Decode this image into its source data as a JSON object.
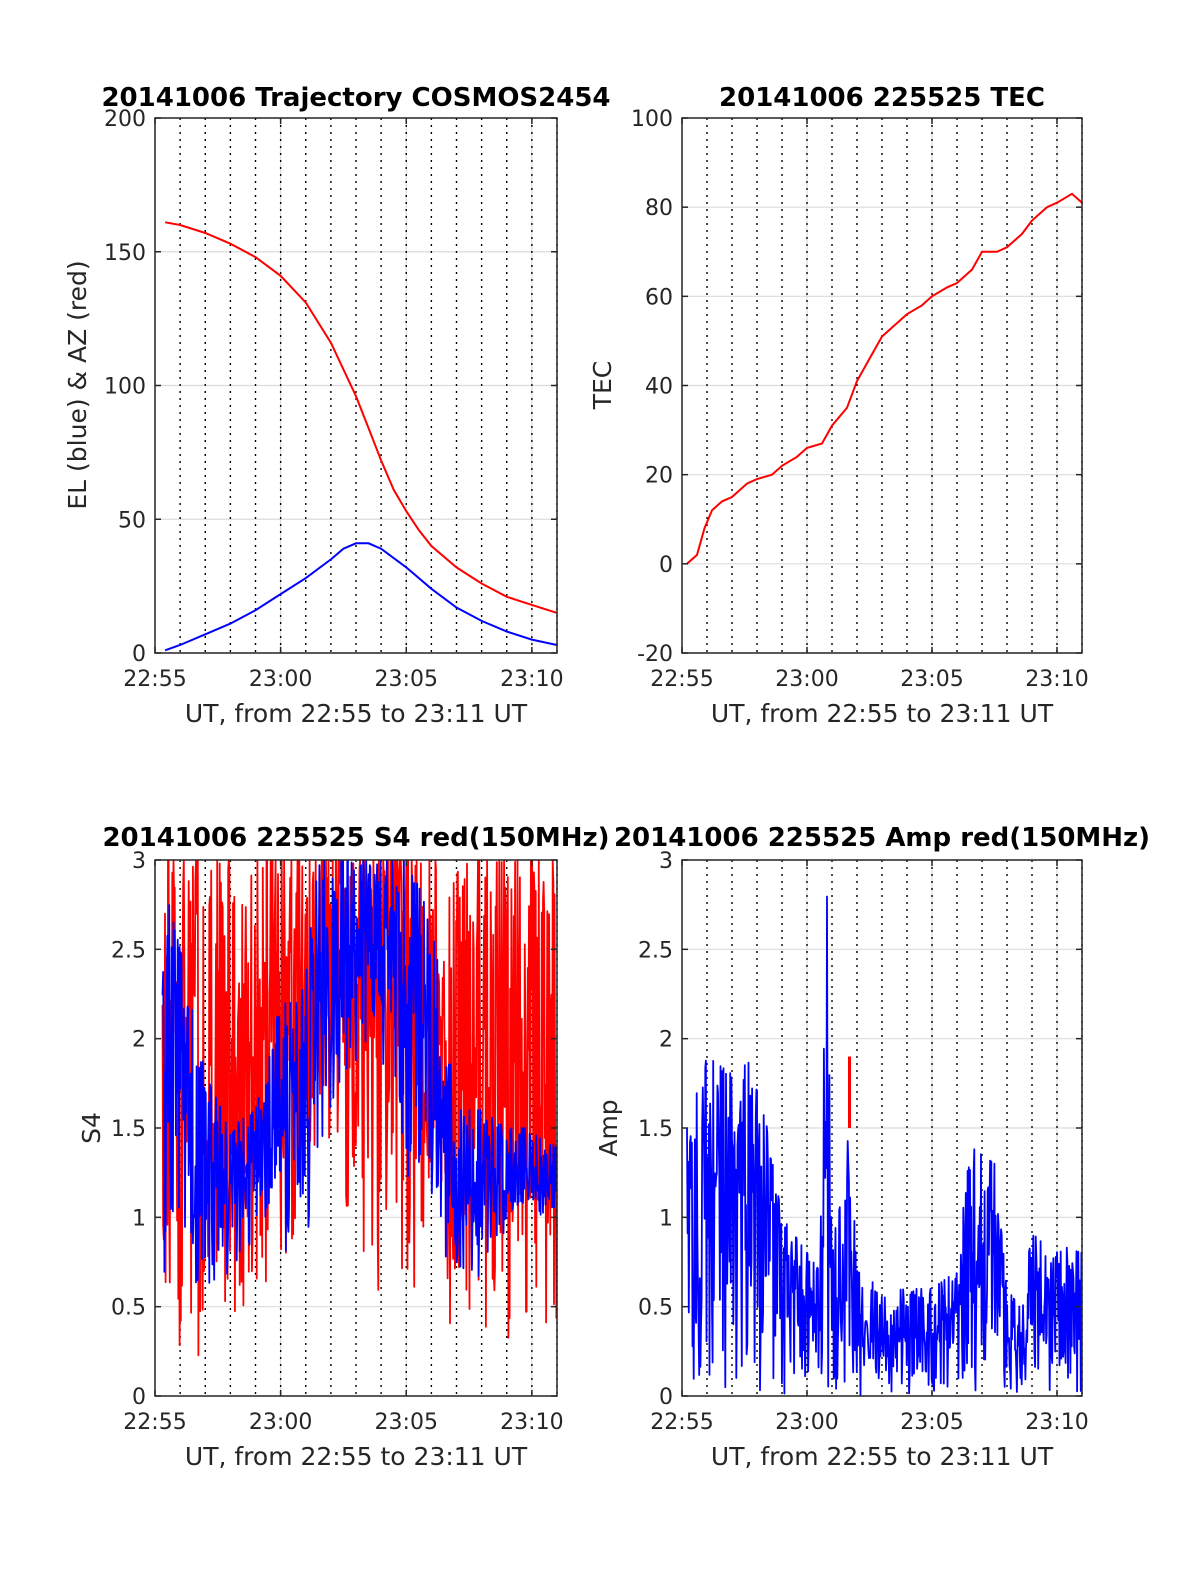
{
  "chart_data": [
    {
      "id": "trajectory",
      "type": "line",
      "title": "20141006 Trajectory COSMOS2454",
      "xlabel": "UT, from 22:55 to 23:11 UT",
      "ylabel": "EL (blue) & AZ (red)",
      "xlim": [
        0,
        16
      ],
      "ylim": [
        0,
        200
      ],
      "x_ticks": [
        {
          "value": 0,
          "label": "22:55"
        },
        {
          "value": 5,
          "label": "23:00"
        },
        {
          "value": 10,
          "label": "23:05"
        },
        {
          "value": 15,
          "label": "23:10"
        }
      ],
      "y_ticks": [
        {
          "value": 0,
          "label": "0"
        },
        {
          "value": 50,
          "label": "50"
        },
        {
          "value": 100,
          "label": "100"
        },
        {
          "value": 150,
          "label": "150"
        },
        {
          "value": 200,
          "label": "200"
        }
      ],
      "grid": true,
      "dotted_verticals": [
        1,
        2,
        3,
        4,
        5,
        6,
        7,
        8,
        9,
        10,
        11,
        12,
        13,
        14,
        15,
        16
      ],
      "series": [
        {
          "color": "#ff0000",
          "x": [
            0.4,
            1,
            2,
            3,
            4,
            5,
            6,
            7,
            8,
            8.5,
            9,
            9.5,
            10,
            10.5,
            11,
            12,
            13,
            14,
            15,
            16
          ],
          "y": [
            161,
            160,
            157,
            153,
            148,
            141,
            131,
            116,
            96,
            84,
            72,
            61,
            53,
            46,
            40,
            32,
            26,
            21,
            18,
            15
          ]
        },
        {
          "color": "#0000ff",
          "x": [
            0.4,
            1,
            2,
            3,
            4,
            5,
            6,
            7,
            7.5,
            8,
            8.5,
            9,
            10,
            11,
            12,
            13,
            14,
            15,
            16
          ],
          "y": [
            1,
            3,
            7,
            11,
            16,
            22,
            28,
            35,
            39,
            41,
            41,
            39,
            32,
            24,
            17,
            12,
            8,
            5,
            3
          ]
        }
      ]
    },
    {
      "id": "tec",
      "type": "line",
      "title": "20141006 225525 TEC",
      "xlabel": "UT, from 22:55 to 23:11 UT",
      "ylabel": "TEC",
      "xlim": [
        0,
        16
      ],
      "ylim": [
        -20,
        100
      ],
      "x_ticks": [
        {
          "value": 0,
          "label": "22:55"
        },
        {
          "value": 5,
          "label": "23:00"
        },
        {
          "value": 10,
          "label": "23:05"
        },
        {
          "value": 15,
          "label": "23:10"
        }
      ],
      "y_ticks": [
        {
          "value": -20,
          "label": "-20"
        },
        {
          "value": 0,
          "label": "0"
        },
        {
          "value": 20,
          "label": "20"
        },
        {
          "value": 40,
          "label": "40"
        },
        {
          "value": 60,
          "label": "60"
        },
        {
          "value": 80,
          "label": "80"
        },
        {
          "value": 100,
          "label": "100"
        }
      ],
      "grid": true,
      "dotted_verticals": [
        1,
        2,
        3,
        4,
        5,
        6,
        7,
        8,
        9,
        10,
        11,
        12,
        13,
        14,
        15,
        16
      ],
      "series": [
        {
          "color": "#ff0000",
          "x": [
            0.2,
            0.6,
            0.9,
            1.2,
            1.6,
            2,
            2.6,
            3,
            3.6,
            4,
            4.6,
            5,
            5.6,
            6,
            6.6,
            7,
            7.6,
            8,
            8.6,
            9,
            9.6,
            10,
            10.6,
            11,
            11.6,
            12,
            12.6,
            13,
            13.6,
            14,
            14.6,
            15,
            15.6,
            16
          ],
          "y": [
            0,
            2,
            8,
            12,
            14,
            15,
            18,
            19,
            20,
            22,
            24,
            26,
            27,
            31,
            35,
            41,
            47,
            51,
            54,
            56,
            58,
            60,
            62,
            63,
            66,
            70,
            70,
            71,
            74,
            77,
            80,
            81,
            83,
            81
          ]
        }
      ]
    },
    {
      "id": "s4",
      "type": "line",
      "title": "20141006 225525 S4 red(150MHz)",
      "xlabel": "UT, from 22:55 to 23:11 UT",
      "ylabel": "S4",
      "xlim": [
        0,
        16
      ],
      "ylim": [
        0,
        3
      ],
      "x_ticks": [
        {
          "value": 0,
          "label": "22:55"
        },
        {
          "value": 5,
          "label": "23:00"
        },
        {
          "value": 10,
          "label": "23:05"
        },
        {
          "value": 15,
          "label": "23:10"
        }
      ],
      "y_ticks": [
        {
          "value": 0,
          "label": "0"
        },
        {
          "value": 0.5,
          "label": "0.5"
        },
        {
          "value": 1,
          "label": "1"
        },
        {
          "value": 1.5,
          "label": "1.5"
        },
        {
          "value": 2,
          "label": "2"
        },
        {
          "value": 2.5,
          "label": "2.5"
        },
        {
          "value": 3,
          "label": "3"
        }
      ],
      "grid": true,
      "dotted_verticals": [
        1,
        2,
        3,
        4,
        5,
        6,
        7,
        8,
        9,
        10,
        11,
        12,
        13,
        14,
        15,
        16
      ],
      "noisy_series": [
        {
          "color": "#ff0000",
          "x_range": [
            0.3,
            16
          ],
          "clip": [
            0,
            3
          ],
          "envelope": [
            [
              0.3,
              0.2,
              3
            ],
            [
              2,
              0.2,
              3
            ],
            [
              4,
              0.4,
              3
            ],
            [
              5.5,
              0.8,
              3
            ],
            [
              6.5,
              1.5,
              3
            ],
            [
              7.5,
              1.0,
              3
            ],
            [
              8.5,
              0.6,
              3
            ],
            [
              9.5,
              0.5,
              3
            ],
            [
              10.5,
              0.6,
              3
            ],
            [
              12,
              0.2,
              3
            ],
            [
              14,
              0.2,
              3
            ],
            [
              16,
              0.4,
              3
            ]
          ]
        },
        {
          "color": "#0000ff",
          "x_range": [
            0.3,
            16
          ],
          "clip": [
            0,
            3
          ],
          "envelope": [
            [
              0.3,
              0.6,
              2.9
            ],
            [
              1,
              0.6,
              2.5
            ],
            [
              2,
              0.5,
              1.8
            ],
            [
              3,
              0.6,
              1.5
            ],
            [
              4,
              0.8,
              1.6
            ],
            [
              5,
              0.9,
              2.2
            ],
            [
              5.8,
              0.4,
              2.2
            ],
            [
              6.5,
              1.3,
              3
            ],
            [
              7.5,
              1.7,
              3
            ],
            [
              8.5,
              1.9,
              3
            ],
            [
              9.5,
              1.8,
              3
            ],
            [
              10,
              1.2,
              3
            ],
            [
              11,
              1.0,
              2.7
            ],
            [
              12,
              0.6,
              1.6
            ],
            [
              13,
              0.6,
              1.6
            ],
            [
              14,
              0.9,
              1.5
            ],
            [
              15,
              1.0,
              1.5
            ],
            [
              16,
              1.0,
              1.4
            ]
          ]
        }
      ]
    },
    {
      "id": "amp",
      "type": "line",
      "title": "20141006 225525 Amp red(150MHz)",
      "xlabel": "UT, from 22:55 to 23:11 UT",
      "ylabel": "Amp",
      "xlim": [
        0,
        16
      ],
      "ylim": [
        0,
        3
      ],
      "x_ticks": [
        {
          "value": 0,
          "label": "22:55"
        },
        {
          "value": 5,
          "label": "23:00"
        },
        {
          "value": 10,
          "label": "23:05"
        },
        {
          "value": 15,
          "label": "23:10"
        }
      ],
      "y_ticks": [
        {
          "value": 0,
          "label": "0"
        },
        {
          "value": 0.5,
          "label": "0.5"
        },
        {
          "value": 1,
          "label": "1"
        },
        {
          "value": 1.5,
          "label": "1.5"
        },
        {
          "value": 2,
          "label": "2"
        },
        {
          "value": 2.5,
          "label": "2.5"
        },
        {
          "value": 3,
          "label": "3"
        }
      ],
      "grid": true,
      "dotted_verticals": [
        1,
        2,
        3,
        4,
        5,
        6,
        7,
        8,
        9,
        10,
        11,
        12,
        13,
        14,
        15,
        16
      ],
      "red_spike": {
        "x": 6.7,
        "y_from": 1.5,
        "y_to": 1.9,
        "color": "#ff0000"
      },
      "noisy_series": [
        {
          "color": "#0000ff",
          "x_range": [
            0.2,
            16
          ],
          "clip": [
            0,
            3
          ],
          "envelope": [
            [
              0.2,
              0,
              1.5
            ],
            [
              1,
              0,
              1.9
            ],
            [
              2,
              0,
              1.8
            ],
            [
              3,
              0,
              1.9
            ],
            [
              3.5,
              0,
              1.4
            ],
            [
              4,
              0,
              1.0
            ],
            [
              5,
              0,
              0.8
            ],
            [
              5.5,
              0,
              0.7
            ],
            [
              5.8,
              0,
              2.8
            ],
            [
              6.0,
              0,
              0.8
            ],
            [
              6.7,
              0,
              1.5
            ],
            [
              7,
              0,
              0.7
            ],
            [
              8,
              0,
              0.6
            ],
            [
              9,
              0,
              0.6
            ],
            [
              10,
              0,
              0.6
            ],
            [
              11,
              0,
              0.7
            ],
            [
              11.5,
              0,
              1.4
            ],
            [
              12.5,
              0,
              1.3
            ],
            [
              13,
              0,
              0.6
            ],
            [
              13.5,
              0,
              0.5
            ],
            [
              14,
              0,
              0.9
            ],
            [
              15,
              0,
              0.85
            ],
            [
              16,
              0,
              0.8
            ]
          ]
        }
      ]
    }
  ]
}
